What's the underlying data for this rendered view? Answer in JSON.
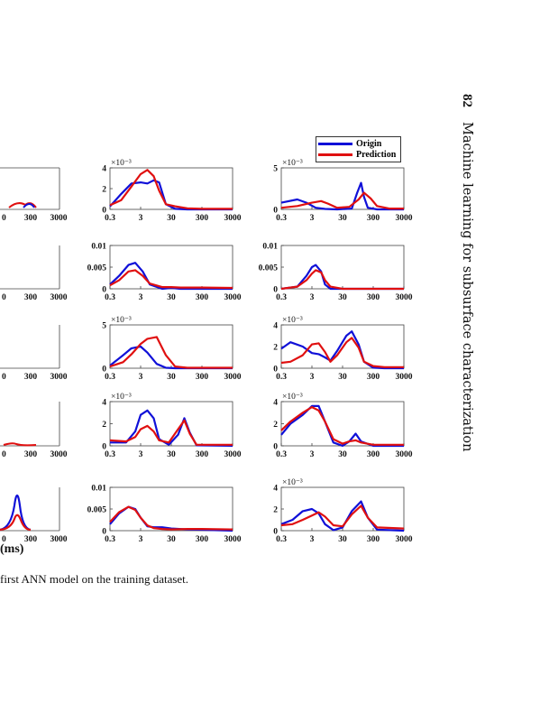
{
  "page": {
    "number": "82",
    "running_title": "Machine learning for subsurface characterization",
    "caption_fragment": "first ANN model on the training dataset."
  },
  "colors": {
    "origin": "#1010d8",
    "prediction": "#e01010"
  },
  "figure": {
    "x_axis_label_fragment": "(ms)",
    "legend": [
      "Origin",
      "Prediction"
    ],
    "x_tick_labels": [
      "0.3",
      "3",
      "30",
      "300",
      "3000"
    ],
    "partial_x_tick_labels": [
      "0",
      "300",
      "3000"
    ]
  },
  "chart_data": [
    {
      "type": "line",
      "panel": "col2-row1",
      "xscale": "log",
      "xlim": [
        0.3,
        3000
      ],
      "ylim": [
        0,
        4
      ],
      "yticks": [
        "0",
        "2",
        "4"
      ],
      "exponent": "×10⁻³",
      "series": [
        {
          "name": "Origin",
          "x": [
            0.3,
            0.7,
            1.5,
            3,
            5,
            8,
            12,
            20,
            40,
            100,
            300,
            3000
          ],
          "y": [
            0.3,
            1.5,
            2.5,
            2.6,
            2.5,
            2.8,
            2.6,
            0.5,
            0.05,
            0,
            0,
            0
          ]
        },
        {
          "name": "Prediction",
          "x": [
            0.3,
            0.7,
            1.5,
            3,
            5,
            8,
            12,
            20,
            40,
            100,
            300,
            3000
          ],
          "y": [
            0.4,
            0.9,
            2.2,
            3.4,
            3.8,
            3.2,
            1.8,
            0.5,
            0.3,
            0.1,
            0.05,
            0.05
          ]
        }
      ]
    },
    {
      "type": "line",
      "panel": "col3-row1",
      "xscale": "log",
      "xlim": [
        0.3,
        3000
      ],
      "ylim": [
        0,
        5
      ],
      "yticks": [
        "0",
        "5"
      ],
      "exponent": "×10⁻³",
      "series": [
        {
          "name": "Origin",
          "x": [
            0.3,
            1,
            2,
            4,
            8,
            20,
            60,
            90,
            120,
            150,
            200,
            400,
            3000
          ],
          "y": [
            0.8,
            1.2,
            0.8,
            0.2,
            0.05,
            0,
            0.1,
            2,
            3.2,
            1.5,
            0.2,
            0,
            0
          ]
        },
        {
          "name": "Prediction",
          "x": [
            0.3,
            1,
            3,
            6,
            10,
            20,
            50,
            100,
            150,
            250,
            400,
            1000,
            3000
          ],
          "y": [
            0.2,
            0.4,
            0.8,
            1,
            0.7,
            0.2,
            0.3,
            1.2,
            2,
            1.3,
            0.4,
            0.1,
            0.1
          ]
        }
      ]
    },
    {
      "type": "line",
      "panel": "col2-row2",
      "xscale": "log",
      "xlim": [
        0.3,
        3000
      ],
      "ylim": [
        0,
        0.01
      ],
      "yticks": [
        "0",
        "0.005",
        "0.01"
      ],
      "series": [
        {
          "name": "Origin",
          "x": [
            0.3,
            0.6,
            1.2,
            2,
            3.5,
            6,
            15,
            30,
            60,
            300,
            3000
          ],
          "y": [
            0.001,
            0.003,
            0.0055,
            0.006,
            0.004,
            0.001,
            0,
            0.0002,
            0,
            0,
            0
          ]
        },
        {
          "name": "Prediction",
          "x": [
            0.3,
            0.6,
            1.2,
            2,
            3.5,
            6,
            15,
            30,
            60,
            300,
            3000
          ],
          "y": [
            0.0008,
            0.002,
            0.004,
            0.0043,
            0.003,
            0.0012,
            0.0004,
            0.0004,
            0.0003,
            0.0003,
            0.0002
          ]
        }
      ]
    },
    {
      "type": "line",
      "panel": "col3-row2",
      "xscale": "log",
      "xlim": [
        0.3,
        3000
      ],
      "ylim": [
        0,
        0.01
      ],
      "yticks": [
        "0",
        "0.005",
        "0.01"
      ],
      "series": [
        {
          "name": "Origin",
          "x": [
            0.3,
            1,
            2,
            3,
            4,
            6,
            8,
            12,
            30,
            300,
            3000
          ],
          "y": [
            0,
            0.0005,
            0.003,
            0.005,
            0.0055,
            0.004,
            0.001,
            0,
            0,
            0,
            0
          ]
        },
        {
          "name": "Prediction",
          "x": [
            0.3,
            1,
            2,
            3,
            4,
            6,
            8,
            12,
            30,
            300,
            3000
          ],
          "y": [
            0,
            0.0005,
            0.002,
            0.0035,
            0.0043,
            0.0038,
            0.002,
            0.0005,
            0,
            0,
            0
          ]
        }
      ]
    },
    {
      "type": "line",
      "panel": "col2-row3",
      "xscale": "log",
      "xlim": [
        0.3,
        3000
      ],
      "ylim": [
        0,
        5
      ],
      "yticks": [
        "0",
        "5"
      ],
      "exponent": "×10⁻³",
      "series": [
        {
          "name": "Origin",
          "x": [
            0.3,
            0.8,
            1.5,
            3,
            5,
            10,
            20,
            40,
            100,
            3000
          ],
          "y": [
            0.3,
            1.5,
            2.3,
            2.5,
            1.8,
            0.5,
            0.05,
            0,
            0,
            0
          ]
        },
        {
          "name": "Prediction",
          "x": [
            0.3,
            0.8,
            1.5,
            3,
            5,
            10,
            20,
            40,
            100,
            3000
          ],
          "y": [
            0.2,
            0.7,
            1.6,
            2.8,
            3.4,
            3.6,
            1.5,
            0.2,
            0.05,
            0.05
          ]
        }
      ]
    },
    {
      "type": "line",
      "panel": "col3-row3",
      "xscale": "log",
      "xlim": [
        0.3,
        3000
      ],
      "ylim": [
        0,
        4
      ],
      "yticks": [
        "0",
        "2",
        "4"
      ],
      "exponent": "×10⁻³",
      "series": [
        {
          "name": "Origin",
          "x": [
            0.3,
            0.6,
            1.5,
            3,
            5,
            8,
            12,
            20,
            40,
            60,
            100,
            150,
            300,
            700,
            3000
          ],
          "y": [
            1.8,
            2.4,
            2,
            1.4,
            1.3,
            1,
            0.7,
            1.6,
            3,
            3.4,
            2.2,
            0.6,
            0.05,
            0,
            0
          ]
        },
        {
          "name": "Prediction",
          "x": [
            0.3,
            0.6,
            1.5,
            3,
            5,
            8,
            12,
            20,
            40,
            60,
            100,
            150,
            300,
            700,
            3000
          ],
          "y": [
            0.5,
            0.6,
            1.2,
            2.2,
            2.3,
            1.5,
            0.6,
            1.2,
            2.4,
            2.8,
            1.9,
            0.6,
            0.2,
            0.1,
            0.1
          ]
        }
      ]
    },
    {
      "type": "line",
      "panel": "col2-row4",
      "xscale": "log",
      "xlim": [
        0.3,
        3000
      ],
      "ylim": [
        0,
        4
      ],
      "yticks": [
        "0",
        "2",
        "4"
      ],
      "exponent": "×10⁻³",
      "series": [
        {
          "name": "Origin",
          "x": [
            0.3,
            1,
            2,
            3,
            5,
            8,
            12,
            25,
            50,
            80,
            120,
            200,
            3000
          ],
          "y": [
            0.3,
            0.3,
            1.3,
            2.8,
            3.2,
            2.5,
            0.6,
            0.1,
            1,
            2.5,
            1.2,
            0.05,
            0
          ]
        },
        {
          "name": "Prediction",
          "x": [
            0.3,
            1,
            2,
            3,
            5,
            8,
            12,
            25,
            50,
            80,
            120,
            200,
            3000
          ],
          "y": [
            0.5,
            0.4,
            0.8,
            1.5,
            1.8,
            1.3,
            0.5,
            0.3,
            1.5,
            2.3,
            1.1,
            0.1,
            0.1
          ]
        }
      ]
    },
    {
      "type": "line",
      "panel": "col3-row4",
      "xscale": "log",
      "xlim": [
        0.3,
        3000
      ],
      "ylim": [
        0,
        4
      ],
      "yticks": [
        "0",
        "2",
        "4"
      ],
      "exponent": "×10⁻³",
      "series": [
        {
          "name": "Origin",
          "x": [
            0.3,
            0.6,
            1.5,
            3,
            5,
            8,
            15,
            30,
            50,
            80,
            120,
            300,
            3000
          ],
          "y": [
            1,
            2,
            2.8,
            3.6,
            3.6,
            2.2,
            0.3,
            0,
            0.4,
            1.1,
            0.4,
            0,
            0
          ]
        },
        {
          "name": "Prediction",
          "x": [
            0.3,
            0.6,
            1.5,
            3,
            5,
            8,
            15,
            30,
            50,
            80,
            120,
            300,
            3000
          ],
          "y": [
            1.4,
            2.2,
            3,
            3.5,
            3.2,
            2.2,
            0.6,
            0.2,
            0.4,
            0.5,
            0.3,
            0.1,
            0.1
          ]
        }
      ]
    },
    {
      "type": "line",
      "panel": "col2-row5",
      "xscale": "log",
      "xlim": [
        0.3,
        3000
      ],
      "ylim": [
        0,
        0.01
      ],
      "yticks": [
        "0",
        "0.005",
        "0.01"
      ],
      "series": [
        {
          "name": "Origin",
          "x": [
            0.3,
            0.6,
            1.2,
            2,
            3,
            5,
            8,
            15,
            30,
            100,
            300,
            3000
          ],
          "y": [
            0.0015,
            0.004,
            0.0055,
            0.005,
            0.003,
            0.001,
            0.0008,
            0.0008,
            0.0005,
            0.0003,
            0.0002,
            0
          ]
        },
        {
          "name": "Prediction",
          "x": [
            0.3,
            0.6,
            1.2,
            2,
            3,
            5,
            8,
            15,
            30,
            100,
            300,
            3000
          ],
          "y": [
            0.002,
            0.0043,
            0.0055,
            0.0048,
            0.003,
            0.0012,
            0.0006,
            0.0004,
            0.0003,
            0.0004,
            0.0004,
            0.0003
          ]
        }
      ]
    },
    {
      "type": "line",
      "panel": "col3-row5",
      "xscale": "log",
      "xlim": [
        0.3,
        3000
      ],
      "ylim": [
        0,
        4
      ],
      "yticks": [
        "0",
        "2",
        "4"
      ],
      "exponent": "×10⁻³",
      "series": [
        {
          "name": "Origin",
          "x": [
            0.3,
            0.7,
            1.5,
            3,
            5,
            8,
            15,
            30,
            60,
            120,
            200,
            400,
            3000
          ],
          "y": [
            0.6,
            1,
            1.8,
            2,
            1.6,
            0.6,
            0.05,
            0.3,
            1.8,
            2.7,
            1.2,
            0.1,
            0
          ]
        },
        {
          "name": "Prediction",
          "x": [
            0.3,
            0.7,
            1.5,
            3,
            5,
            8,
            15,
            30,
            60,
            120,
            200,
            400,
            3000
          ],
          "y": [
            0.5,
            0.6,
            1,
            1.4,
            1.7,
            1.3,
            0.5,
            0.4,
            1.5,
            2.3,
            1.2,
            0.3,
            0.2
          ]
        }
      ]
    },
    {
      "type": "line",
      "panel": "col1-partial",
      "xscale": "log",
      "note": "clipped columns at left edge",
      "series": [
        {
          "name": "Origin",
          "x": [
            150,
            200,
            300,
            400
          ],
          "y": [
            0.1,
            0.3,
            0.5,
            0.1
          ]
        },
        {
          "name": "Prediction",
          "x": [
            150,
            200,
            300,
            400
          ],
          "y": [
            0.2,
            0.4,
            0.3,
            0.1
          ]
        }
      ]
    }
  ]
}
